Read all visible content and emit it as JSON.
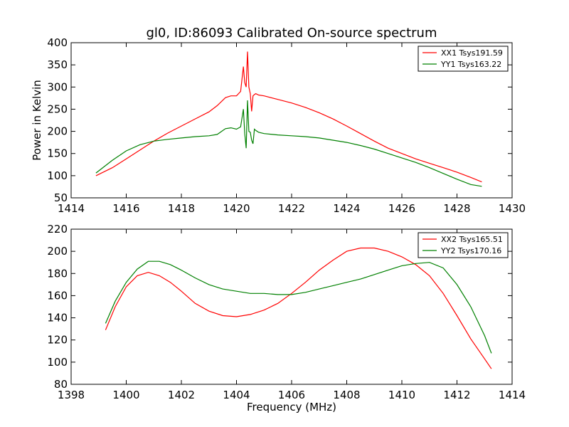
{
  "figure": {
    "title": "gl0, ID:86093 Calibrated On-source spectrum"
  },
  "chart_data": [
    {
      "type": "line",
      "title": "gl0, ID:86093 Calibrated On-source spectrum",
      "xlabel": "",
      "ylabel": "Power in Kelvin",
      "xlim": [
        1414,
        1430
      ],
      "ylim": [
        50,
        400
      ],
      "xticks": [
        1414,
        1416,
        1418,
        1420,
        1422,
        1424,
        1426,
        1428,
        1430
      ],
      "yticks": [
        50,
        100,
        150,
        200,
        250,
        300,
        350,
        400
      ],
      "grid": false,
      "legend_position": "upper-right",
      "series": [
        {
          "name": "XX1 Tsys191.59",
          "color": "#ff0000",
          "x": [
            1414.9,
            1415.5,
            1416,
            1416.5,
            1417,
            1417.5,
            1418,
            1418.5,
            1419,
            1419.3,
            1419.6,
            1419.8,
            1420.0,
            1420.15,
            1420.25,
            1420.3,
            1420.35,
            1420.4,
            1420.45,
            1420.5,
            1420.55,
            1420.6,
            1420.65,
            1420.7,
            1420.8,
            1421,
            1421.5,
            1422,
            1422.5,
            1423,
            1423.5,
            1424,
            1424.5,
            1425,
            1425.5,
            1426,
            1426.5,
            1427,
            1427.5,
            1428,
            1428.5,
            1428.9
          ],
          "y": [
            100,
            118,
            138,
            158,
            178,
            196,
            212,
            228,
            244,
            258,
            276,
            280,
            280,
            290,
            346,
            310,
            300,
            380,
            300,
            285,
            245,
            280,
            283,
            285,
            282,
            280,
            272,
            264,
            254,
            242,
            228,
            212,
            195,
            178,
            162,
            150,
            138,
            128,
            118,
            108,
            96,
            86
          ]
        },
        {
          "name": "YY1 Tsys163.22",
          "color": "#008000",
          "x": [
            1414.9,
            1415.5,
            1416,
            1416.5,
            1417,
            1417.5,
            1418,
            1418.5,
            1419,
            1419.3,
            1419.6,
            1419.8,
            1420.0,
            1420.15,
            1420.25,
            1420.3,
            1420.35,
            1420.4,
            1420.45,
            1420.5,
            1420.55,
            1420.6,
            1420.65,
            1420.7,
            1420.8,
            1421,
            1421.5,
            1422,
            1422.5,
            1423,
            1423.5,
            1424,
            1424.5,
            1425,
            1425.5,
            1426,
            1426.5,
            1427,
            1427.5,
            1428,
            1428.5,
            1428.9
          ],
          "y": [
            106,
            135,
            156,
            170,
            178,
            182,
            185,
            188,
            190,
            193,
            206,
            208,
            205,
            210,
            250,
            195,
            162,
            270,
            200,
            198,
            180,
            172,
            205,
            202,
            198,
            195,
            192,
            190,
            188,
            185,
            180,
            175,
            168,
            160,
            150,
            140,
            130,
            118,
            105,
            92,
            80,
            76
          ]
        }
      ]
    },
    {
      "type": "line",
      "title": "",
      "xlabel": "Frequency (MHz)",
      "ylabel": "",
      "xlim": [
        1398,
        1414
      ],
      "ylim": [
        80,
        220
      ],
      "xticks": [
        1398,
        1400,
        1402,
        1404,
        1406,
        1408,
        1410,
        1412,
        1414
      ],
      "yticks": [
        80,
        100,
        120,
        140,
        160,
        180,
        200,
        220
      ],
      "grid": false,
      "legend_position": "upper-right",
      "series": [
        {
          "name": "XX2 Tsys165.51",
          "color": "#ff0000",
          "x": [
            1399.25,
            1399.6,
            1400.0,
            1400.4,
            1400.8,
            1401.2,
            1401.6,
            1402.0,
            1402.5,
            1403.0,
            1403.5,
            1404.0,
            1404.5,
            1405.0,
            1405.5,
            1406.0,
            1406.5,
            1407.0,
            1407.5,
            1408.0,
            1408.5,
            1409.0,
            1409.5,
            1410.0,
            1410.5,
            1411.0,
            1411.5,
            1412.0,
            1412.5,
            1413.0,
            1413.25
          ],
          "y": [
            129,
            150,
            168,
            178,
            181,
            178,
            172,
            164,
            153,
            146,
            142,
            141,
            143,
            147,
            153,
            162,
            172,
            183,
            192,
            200,
            203,
            203,
            200,
            195,
            188,
            178,
            162,
            142,
            121,
            103,
            94
          ]
        },
        {
          "name": "YY2 Tsys170.16",
          "color": "#008000",
          "x": [
            1399.25,
            1399.6,
            1400.0,
            1400.4,
            1400.8,
            1401.2,
            1401.6,
            1402.0,
            1402.5,
            1403.0,
            1403.5,
            1404.0,
            1404.5,
            1405.0,
            1405.5,
            1406.0,
            1406.5,
            1407.0,
            1407.5,
            1408.0,
            1408.5,
            1409.0,
            1409.5,
            1410.0,
            1410.5,
            1411.0,
            1411.5,
            1412.0,
            1412.5,
            1413.0,
            1413.25
          ],
          "y": [
            135,
            155,
            172,
            184,
            191,
            191,
            188,
            183,
            176,
            170,
            166,
            164,
            162,
            162,
            161,
            161,
            163,
            166,
            169,
            172,
            175,
            179,
            183,
            187,
            189,
            190,
            185,
            170,
            150,
            124,
            108
          ]
        }
      ]
    }
  ]
}
